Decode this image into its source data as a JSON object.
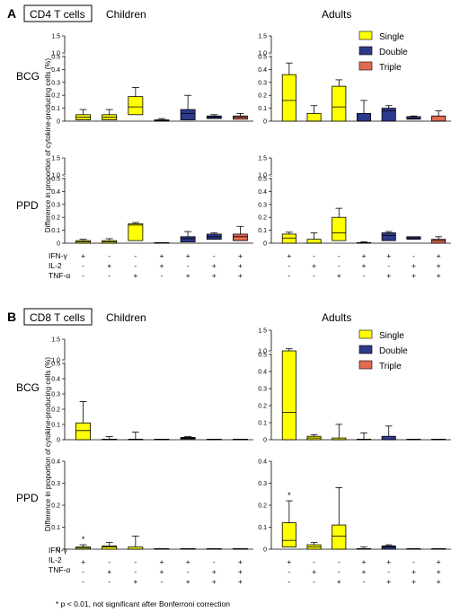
{
  "legend": {
    "labels": [
      "Single",
      "Double",
      "Triple"
    ],
    "colors": [
      "#ffff00",
      "#2d3a8c",
      "#e26a50"
    ]
  },
  "row_labels": {
    "ifn": "IFN-γ",
    "il2": "IL-2",
    "tnf": "TNF-α"
  },
  "combos": [
    [
      "+",
      "-",
      "-"
    ],
    [
      "-",
      "+",
      "-"
    ],
    [
      "-",
      "-",
      "+"
    ],
    [
      "+",
      "+",
      "-"
    ],
    [
      "+",
      "-",
      "+"
    ],
    [
      "-",
      "+",
      "+"
    ],
    [
      "+",
      "+",
      "+"
    ]
  ],
  "combo_types": [
    0,
    0,
    0,
    1,
    1,
    1,
    2
  ],
  "ylabel": "Difference in proportion of cytokine-producing cells (%)",
  "footnote": "* p < 0.01, not significant after Bonferroni correction",
  "panels": [
    {
      "letter": "A",
      "cell": "CD4 T cells",
      "group_left": "Children",
      "group_right": "Adults"
    },
    {
      "letter": "B",
      "cell": "CD8 T cells",
      "group_left": "Children",
      "group_right": "Adults"
    }
  ],
  "chart_data": [
    {
      "type": "box",
      "panel": "A",
      "group": "Children",
      "stimulus": "BCG",
      "yticks": [
        "0",
        "0.1",
        "0.2",
        "0.3",
        "0.4",
        "0.5",
        "1.0",
        "1.5"
      ],
      "boxes": [
        {
          "q1": 0.01,
          "median": 0.03,
          "q3": 0.05,
          "max": 0.09
        },
        {
          "q1": 0.01,
          "median": 0.03,
          "q3": 0.05,
          "max": 0.09
        },
        {
          "q1": 0.05,
          "median": 0.11,
          "q3": 0.19,
          "max": 0.26
        },
        {
          "q1": 0.0,
          "median": 0.005,
          "q3": 0.01,
          "max": 0.02
        },
        {
          "q1": 0.01,
          "median": 0.06,
          "q3": 0.09,
          "max": 0.2
        },
        {
          "q1": 0.02,
          "median": 0.03,
          "q3": 0.04,
          "max": 0.05
        },
        {
          "q1": 0.015,
          "median": 0.03,
          "q3": 0.04,
          "max": 0.06
        }
      ]
    },
    {
      "type": "box",
      "panel": "A",
      "group": "Adults",
      "stimulus": "BCG",
      "yticks": [
        "0",
        "0.1",
        "0.2",
        "0.3",
        "0.4",
        "0.5",
        "1.0",
        "1.5"
      ],
      "boxes": [
        {
          "q1": 0.0,
          "median": 0.16,
          "q3": 0.36,
          "max": 0.45
        },
        {
          "q1": 0.0,
          "median": 0.0,
          "q3": 0.06,
          "max": 0.12
        },
        {
          "q1": 0.0,
          "median": 0.11,
          "q3": 0.27,
          "max": 0.32
        },
        {
          "q1": 0.0,
          "median": 0.0,
          "q3": 0.06,
          "max": 0.16
        },
        {
          "q1": 0.0,
          "median": 0.08,
          "q3": 0.1,
          "max": 0.12
        },
        {
          "q1": 0.015,
          "median": 0.02,
          "q3": 0.035,
          "max": 0.04
        },
        {
          "q1": 0.0,
          "median": 0.0,
          "q3": 0.04,
          "max": 0.08
        }
      ]
    },
    {
      "type": "box",
      "panel": "A",
      "group": "Children",
      "stimulus": "PPD",
      "yticks": [
        "0",
        "0.1",
        "0.2",
        "0.3",
        "0.4",
        "0.5",
        "1.0",
        "1.5"
      ],
      "boxes": [
        {
          "q1": 0.0,
          "median": 0.01,
          "q3": 0.02,
          "max": 0.03
        },
        {
          "q1": 0.0,
          "median": 0.01,
          "q3": 0.02,
          "max": 0.035
        },
        {
          "q1": 0.02,
          "median": 0.14,
          "q3": 0.15,
          "max": 0.16
        },
        {
          "q1": 0.0,
          "median": 0.0,
          "q3": 0.0,
          "max": 0.0
        },
        {
          "q1": 0.01,
          "median": 0.035,
          "q3": 0.05,
          "max": 0.09
        },
        {
          "q1": 0.03,
          "median": 0.05,
          "q3": 0.07,
          "max": 0.08
        },
        {
          "q1": 0.02,
          "median": 0.05,
          "q3": 0.07,
          "max": 0.13
        }
      ]
    },
    {
      "type": "box",
      "panel": "A",
      "group": "Adults",
      "stimulus": "PPD",
      "yticks": [
        "0",
        "0.1",
        "0.2",
        "0.3",
        "0.4",
        "0.5",
        "1.0",
        "1.5"
      ],
      "boxes": [
        {
          "q1": 0.0,
          "median": 0.04,
          "q3": 0.07,
          "max": 0.085
        },
        {
          "q1": 0.0,
          "median": 0.0,
          "q3": 0.03,
          "max": 0.08
        },
        {
          "q1": 0.02,
          "median": 0.08,
          "q3": 0.2,
          "max": 0.27
        },
        {
          "q1": 0.0,
          "median": 0.0,
          "q3": 0.0,
          "max": 0.01
        },
        {
          "q1": 0.02,
          "median": 0.06,
          "q3": 0.08,
          "max": 0.09
        },
        {
          "q1": 0.03,
          "median": 0.04,
          "q3": 0.05,
          "max": 0.05
        },
        {
          "q1": 0.0,
          "median": 0.02,
          "q3": 0.03,
          "max": 0.05
        }
      ]
    },
    {
      "type": "box",
      "panel": "B",
      "group": "Children",
      "stimulus": "BCG",
      "yticks": [
        "0",
        "0.1",
        "0.2",
        "0.3",
        "0.4",
        "0.5",
        "1.0",
        "1.5"
      ],
      "boxes": [
        {
          "q1": 0.0,
          "median": 0.06,
          "q3": 0.11,
          "max": 0.25
        },
        {
          "q1": 0.0,
          "median": 0.0,
          "q3": 0.0,
          "max": 0.02
        },
        {
          "q1": 0.0,
          "median": 0.0,
          "q3": 0.0,
          "max": 0.05
        },
        {
          "q1": 0.0,
          "median": 0.0,
          "q3": 0.0,
          "max": 0.0
        },
        {
          "q1": 0.005,
          "median": 0.01,
          "q3": 0.015,
          "max": 0.02
        },
        {
          "q1": 0.0,
          "median": 0.0,
          "q3": 0.0,
          "max": 0.0
        },
        {
          "q1": 0.0,
          "median": 0.0,
          "q3": 0.0,
          "max": 0.0
        }
      ]
    },
    {
      "type": "box",
      "panel": "B",
      "group": "Adults",
      "stimulus": "BCG",
      "yticks": [
        "0",
        "0.1",
        "0.2",
        "0.3",
        "0.4",
        "0.5",
        "1.0",
        "1.5"
      ],
      "boxes": [
        {
          "q1": 0.0,
          "median": 0.16,
          "q3": 0.97,
          "max": 1.05
        },
        {
          "q1": 0.0,
          "median": 0.01,
          "q3": 0.02,
          "max": 0.03
        },
        {
          "q1": 0.0,
          "median": 0.0,
          "q3": 0.01,
          "max": 0.09
        },
        {
          "q1": 0.0,
          "median": 0.0,
          "q3": 0.0,
          "max": 0.04
        },
        {
          "q1": 0.0,
          "median": 0.0,
          "q3": 0.02,
          "max": 0.08
        },
        {
          "q1": 0.0,
          "median": 0.0,
          "q3": 0.0,
          "max": 0.0
        },
        {
          "q1": 0.0,
          "median": 0.0,
          "q3": 0.0,
          "max": 0.0
        }
      ]
    },
    {
      "type": "box",
      "panel": "B",
      "group": "Children",
      "stimulus": "PPD",
      "yticks": [
        "0",
        "0.1",
        "0.2",
        "0.3",
        "0.4"
      ],
      "boxes": [
        {
          "q1": 0.0,
          "median": 0.005,
          "q3": 0.01,
          "max": 0.02,
          "star": "*"
        },
        {
          "q1": 0.0,
          "median": 0.01,
          "q3": 0.015,
          "max": 0.03
        },
        {
          "q1": 0.0,
          "median": 0.0,
          "q3": 0.01,
          "max": 0.06
        },
        {
          "q1": 0.0,
          "median": 0.0,
          "q3": 0.0,
          "max": 0.0
        },
        {
          "q1": 0.0,
          "median": 0.0,
          "q3": 0.0,
          "max": 0.0
        },
        {
          "q1": 0.0,
          "median": 0.0,
          "q3": 0.0,
          "max": 0.0
        },
        {
          "q1": 0.0,
          "median": 0.0,
          "q3": 0.0,
          "max": 0.0
        }
      ]
    },
    {
      "type": "box",
      "panel": "B",
      "group": "Adults",
      "stimulus": "PPD",
      "yticks": [
        "0",
        "0.1",
        "0.2",
        "0.3",
        "0.4"
      ],
      "boxes": [
        {
          "q1": 0.01,
          "median": 0.04,
          "q3": 0.12,
          "max": 0.22,
          "star": "*"
        },
        {
          "q1": 0.0,
          "median": 0.01,
          "q3": 0.02,
          "max": 0.03
        },
        {
          "q1": 0.0,
          "median": 0.06,
          "q3": 0.11,
          "max": 0.28
        },
        {
          "q1": 0.0,
          "median": 0.0,
          "q3": 0.0,
          "max": 0.01
        },
        {
          "q1": 0.0,
          "median": 0.01,
          "q3": 0.015,
          "max": 0.02
        },
        {
          "q1": 0.0,
          "median": 0.0,
          "q3": 0.0,
          "max": 0.0
        },
        {
          "q1": 0.0,
          "median": 0.0,
          "q3": 0.0,
          "max": 0.0
        }
      ]
    }
  ]
}
